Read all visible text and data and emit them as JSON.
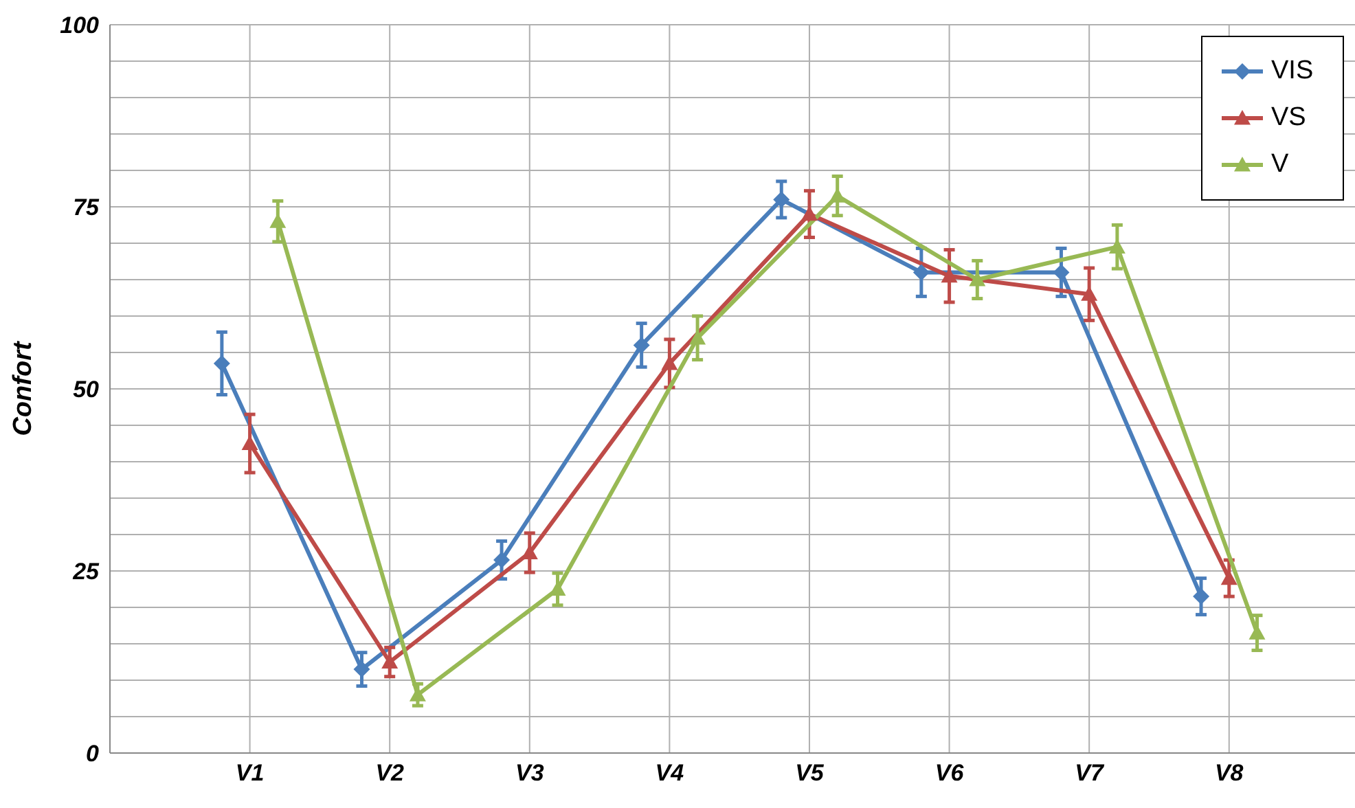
{
  "chart_data": {
    "type": "line",
    "ylabel": "Confort",
    "categories": [
      "V1",
      "V2",
      "V3",
      "V4",
      "V5",
      "V6",
      "V7",
      "V8"
    ],
    "ylim": [
      0,
      100
    ],
    "yticks": [
      0,
      {
        "value": 5,
        "label": null
      },
      {
        "value": 10,
        "label": null
      },
      {
        "value": 15,
        "label": null
      },
      {
        "value": 20,
        "label": null
      },
      25,
      {
        "value": 30,
        "label": null
      },
      {
        "value": 35,
        "label": null
      },
      {
        "value": 40,
        "label": null
      },
      {
        "value": 45,
        "label": null
      },
      50,
      {
        "value": 55,
        "label": null
      },
      {
        "value": 60,
        "label": null
      },
      {
        "value": 65,
        "label": null
      },
      {
        "value": 70,
        "label": null
      },
      75,
      {
        "value": 80,
        "label": null
      },
      {
        "value": 85,
        "label": null
      },
      {
        "value": 90,
        "label": null
      },
      {
        "value": 95,
        "label": null
      },
      100
    ],
    "grid": true,
    "legend": "top right",
    "series": [
      {
        "name": "VIS",
        "color": "#4a7ebb",
        "marker": "diamond",
        "values": [
          53.5,
          11.5,
          26.5,
          56,
          76,
          66,
          66,
          21.5
        ],
        "errors": [
          4.3,
          2.3,
          2.6,
          3,
          2.5,
          3.3,
          3.3,
          2.5
        ]
      },
      {
        "name": "VS",
        "color": "#be4b48",
        "marker": "triangle",
        "values": [
          42.5,
          12.5,
          27.5,
          53.5,
          74,
          65.5,
          63,
          24
        ],
        "errors": [
          4,
          2,
          2.7,
          3.3,
          3.2,
          3.6,
          3.6,
          2.5
        ]
      },
      {
        "name": "V",
        "color": "#98b954",
        "marker": "triangle",
        "values": [
          73,
          8,
          22.5,
          57,
          76.5,
          65,
          69.5,
          16.5
        ],
        "errors": [
          2.8,
          1.5,
          2.2,
          3,
          2.7,
          2.6,
          3,
          2.4
        ]
      }
    ]
  }
}
